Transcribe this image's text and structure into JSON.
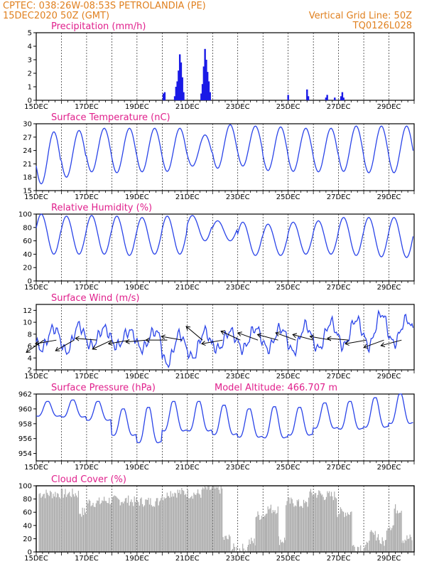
{
  "header": {
    "line1_left": "CPTEC:   038:26W-08:53S   PETROLANDIA (PE)",
    "line2_left": "15DEC2020 50Z (GMT)",
    "line1_right": "Vertical Grid Line: 50Z",
    "line2_right": "TQ0126L028"
  },
  "colors": {
    "header": "#e0801f",
    "panel_title": "#e0208c",
    "series_line": "#2a44e8",
    "precip_bar": "#1a1ae6",
    "cloud_fill": "#a9a9a9",
    "wind_arrow": "#000000"
  },
  "chart_data": [
    {
      "type": "bar",
      "title": "Precipitation (mm/h)",
      "x_labels": [
        "15DEC",
        "17DEC",
        "19DEC",
        "21DEC",
        "23DEC",
        "25DEC",
        "27DEC",
        "29DEC"
      ],
      "x_label_day": [
        0,
        2,
        4,
        6,
        8,
        10,
        12,
        14
      ],
      "ylim": [
        0,
        5
      ],
      "yticks": [
        0,
        1,
        2,
        3,
        4,
        5
      ],
      "day_range": [
        0,
        15
      ],
      "bars": [
        {
          "day": 5.05,
          "value": 0.5
        },
        {
          "day": 5.1,
          "value": 0.6
        },
        {
          "day": 5.5,
          "value": 0.3
        },
        {
          "day": 5.55,
          "value": 1.0
        },
        {
          "day": 5.6,
          "value": 1.4
        },
        {
          "day": 5.65,
          "value": 2.2
        },
        {
          "day": 5.7,
          "value": 3.4
        },
        {
          "day": 5.75,
          "value": 2.8
        },
        {
          "day": 5.8,
          "value": 1.7
        },
        {
          "day": 5.85,
          "value": 0.6
        },
        {
          "day": 6.55,
          "value": 0.5
        },
        {
          "day": 6.6,
          "value": 1.2
        },
        {
          "day": 6.65,
          "value": 2.5
        },
        {
          "day": 6.7,
          "value": 3.8
        },
        {
          "day": 6.75,
          "value": 3.0
        },
        {
          "day": 6.8,
          "value": 2.1
        },
        {
          "day": 6.85,
          "value": 1.4
        },
        {
          "day": 6.9,
          "value": 0.6
        },
        {
          "day": 10.0,
          "value": 0.4
        },
        {
          "day": 10.75,
          "value": 0.8
        },
        {
          "day": 10.8,
          "value": 0.3
        },
        {
          "day": 11.5,
          "value": 0.2
        },
        {
          "day": 11.55,
          "value": 0.4
        },
        {
          "day": 11.85,
          "value": 0.2
        },
        {
          "day": 12.1,
          "value": 0.3
        },
        {
          "day": 12.15,
          "value": 0.6
        },
        {
          "day": 12.2,
          "value": 0.2
        }
      ]
    },
    {
      "type": "line",
      "title": "Surface Temperature (nC)",
      "x_labels": [
        "15DEC",
        "17DEC",
        "19DEC",
        "21DEC",
        "23DEC",
        "25DEC",
        "27DEC",
        "29DEC"
      ],
      "x_label_day": [
        0,
        2,
        4,
        6,
        8,
        10,
        12,
        14
      ],
      "ylim": [
        15,
        30
      ],
      "yticks": [
        15,
        18,
        21,
        24,
        27,
        30
      ],
      "day_range": [
        0,
        15
      ],
      "daily": [
        {
          "min": 16.5,
          "max": 28.2
        },
        {
          "min": 18.0,
          "max": 28.5
        },
        {
          "min": 19.2,
          "max": 29.0
        },
        {
          "min": 19.0,
          "max": 29.0
        },
        {
          "min": 19.2,
          "max": 29.0
        },
        {
          "min": 19.3,
          "max": 29.0
        },
        {
          "min": 20.5,
          "max": 27.5
        },
        {
          "min": 20.0,
          "max": 29.8
        },
        {
          "min": 20.5,
          "max": 29.5
        },
        {
          "min": 19.5,
          "max": 29.3
        },
        {
          "min": 19.3,
          "max": 29.0
        },
        {
          "min": 19.2,
          "max": 29.0
        },
        {
          "min": 19.3,
          "max": 29.5
        },
        {
          "min": 19.0,
          "max": 29.5
        },
        {
          "min": 19.0,
          "max": 29.5
        }
      ]
    },
    {
      "type": "line",
      "title": "Relative Humidity (%)",
      "x_labels": [
        "15DEC",
        "17DEC",
        "19DEC",
        "21DEC",
        "23DEC",
        "25DEC",
        "27DEC",
        "29DEC"
      ],
      "x_label_day": [
        0,
        2,
        4,
        6,
        8,
        10,
        12,
        14
      ],
      "ylim": [
        0,
        100
      ],
      "yticks": [
        0,
        20,
        40,
        60,
        80,
        100
      ],
      "day_range": [
        0,
        15
      ],
      "daily": [
        {
          "min": 40,
          "max": 100
        },
        {
          "min": 40,
          "max": 97
        },
        {
          "min": 40,
          "max": 98
        },
        {
          "min": 38,
          "max": 97
        },
        {
          "min": 40,
          "max": 95
        },
        {
          "min": 40,
          "max": 97
        },
        {
          "min": 60,
          "max": 98
        },
        {
          "min": 60,
          "max": 90
        },
        {
          "min": 38,
          "max": 88
        },
        {
          "min": 38,
          "max": 85
        },
        {
          "min": 40,
          "max": 88
        },
        {
          "min": 40,
          "max": 90
        },
        {
          "min": 38,
          "max": 95
        },
        {
          "min": 36,
          "max": 95
        },
        {
          "min": 35,
          "max": 95
        }
      ]
    },
    {
      "type": "line",
      "title": "Surface Wind (m/s)",
      "x_labels": [
        "15DEC",
        "17DEC",
        "19DEC",
        "21DEC",
        "23DEC",
        "25DEC",
        "27DEC",
        "29DEC"
      ],
      "x_label_day": [
        0,
        2,
        4,
        6,
        8,
        10,
        12,
        14
      ],
      "ylim": [
        2,
        13
      ],
      "yticks": [
        2,
        4,
        6,
        8,
        10,
        12
      ],
      "day_range": [
        0,
        15
      ],
      "daily": [
        {
          "min": 5.5,
          "max": 9.0
        },
        {
          "min": 5.0,
          "max": 9.5
        },
        {
          "min": 6.0,
          "max": 9.0
        },
        {
          "min": 6.0,
          "max": 8.5
        },
        {
          "min": 5.5,
          "max": 8.5
        },
        {
          "min": 3.0,
          "max": 8.0
        },
        {
          "min": 4.0,
          "max": 8.5
        },
        {
          "min": 5.5,
          "max": 8.5
        },
        {
          "min": 5.5,
          "max": 9.0
        },
        {
          "min": 5.5,
          "max": 9.0
        },
        {
          "min": 5.0,
          "max": 9.5
        },
        {
          "min": 5.5,
          "max": 10.0
        },
        {
          "min": 6.0,
          "max": 10.5
        },
        {
          "min": 6.0,
          "max": 11.5
        },
        {
          "min": 6.5,
          "max": 10.5
        }
      ],
      "arrows": [
        {
          "day": 0.3,
          "dir": -35
        },
        {
          "day": 0.8,
          "dir": -10
        },
        {
          "day": 1.5,
          "dir": -30
        },
        {
          "day": 2.4,
          "dir": 5
        },
        {
          "day": 3.0,
          "dir": -25
        },
        {
          "day": 3.7,
          "dir": -10
        },
        {
          "day": 4.4,
          "dir": -5
        },
        {
          "day": 5.2,
          "dir": 0
        },
        {
          "day": 5.8,
          "dir": 10
        },
        {
          "day": 6.6,
          "dir": 40
        },
        {
          "day": 7.4,
          "dir": -10
        },
        {
          "day": 8.1,
          "dir": 25
        },
        {
          "day": 8.8,
          "dir": 20
        },
        {
          "day": 9.6,
          "dir": 15
        },
        {
          "day": 10.3,
          "dir": 20
        },
        {
          "day": 11.0,
          "dir": 15
        },
        {
          "day": 11.7,
          "dir": 10
        },
        {
          "day": 12.4,
          "dir": 5
        },
        {
          "day": 13.1,
          "dir": -10
        },
        {
          "day": 13.8,
          "dir": -20
        },
        {
          "day": 14.5,
          "dir": -15
        }
      ]
    },
    {
      "type": "line",
      "title": "Surface Pressure (hPa)",
      "subtitle": "Model Altitude: 466.707 m",
      "x_labels": [
        "15DEC",
        "17DEC",
        "19DEC",
        "21DEC",
        "23DEC",
        "25DEC",
        "27DEC",
        "29DEC"
      ],
      "x_label_day": [
        0,
        2,
        4,
        6,
        8,
        10,
        12,
        14
      ],
      "ylim": [
        953,
        962
      ],
      "yticks": [
        954,
        956,
        958,
        960,
        962
      ],
      "day_range": [
        0,
        15
      ],
      "daily": [
        {
          "min": 958.5,
          "max": 961.0
        },
        {
          "min": 958.3,
          "max": 961.2
        },
        {
          "min": 957.8,
          "max": 961.0
        },
        {
          "min": 955.5,
          "max": 960.0
        },
        {
          "min": 954.2,
          "max": 960.2
        },
        {
          "min": 956.0,
          "max": 961.0
        },
        {
          "min": 956.0,
          "max": 961.0
        },
        {
          "min": 955.5,
          "max": 960.5
        },
        {
          "min": 955.2,
          "max": 960.0
        },
        {
          "min": 955.0,
          "max": 960.3
        },
        {
          "min": 955.5,
          "max": 960.2
        },
        {
          "min": 956.5,
          "max": 960.8
        },
        {
          "min": 956.3,
          "max": 961.0
        },
        {
          "min": 956.5,
          "max": 961.5
        },
        {
          "min": 957.0,
          "max": 962.0
        }
      ]
    },
    {
      "type": "area",
      "title": "Cloud Cover (%)",
      "x_labels": [
        "15DEC",
        "17DEC",
        "19DEC",
        "21DEC",
        "23DEC",
        "25DEC",
        "27DEC",
        "29DEC"
      ],
      "x_label_day": [
        0,
        2,
        4,
        6,
        8,
        10,
        12,
        14
      ],
      "ylim": [
        0,
        100
      ],
      "yticks": [
        0,
        20,
        40,
        60,
        80,
        100
      ],
      "day_range": [
        0,
        15
      ],
      "segments": [
        {
          "start": 0.1,
          "end": 1.7,
          "level": 88
        },
        {
          "start": 1.7,
          "end": 2.0,
          "level": 60
        },
        {
          "start": 2.0,
          "end": 2.6,
          "level": 75
        },
        {
          "start": 2.6,
          "end": 3.8,
          "level": 78
        },
        {
          "start": 3.8,
          "end": 4.9,
          "level": 76
        },
        {
          "start": 4.9,
          "end": 5.2,
          "level": 85
        },
        {
          "start": 5.2,
          "end": 6.0,
          "level": 90
        },
        {
          "start": 6.0,
          "end": 6.6,
          "level": 88
        },
        {
          "start": 6.6,
          "end": 7.4,
          "level": 95
        },
        {
          "start": 7.4,
          "end": 7.7,
          "level": 20
        },
        {
          "start": 7.7,
          "end": 8.4,
          "level": 5
        },
        {
          "start": 8.4,
          "end": 8.7,
          "level": 15
        },
        {
          "start": 8.7,
          "end": 9.1,
          "level": 55
        },
        {
          "start": 9.1,
          "end": 9.6,
          "level": 65
        },
        {
          "start": 9.6,
          "end": 9.9,
          "level": 18
        },
        {
          "start": 9.9,
          "end": 10.4,
          "level": 75
        },
        {
          "start": 10.4,
          "end": 10.8,
          "level": 72
        },
        {
          "start": 10.8,
          "end": 11.3,
          "level": 88
        },
        {
          "start": 11.3,
          "end": 11.9,
          "level": 85
        },
        {
          "start": 11.9,
          "end": 12.5,
          "level": 60
        },
        {
          "start": 12.5,
          "end": 13.2,
          "level": 8
        },
        {
          "start": 13.2,
          "end": 13.6,
          "level": 25
        },
        {
          "start": 13.6,
          "end": 13.9,
          "level": 15
        },
        {
          "start": 13.9,
          "end": 14.2,
          "level": 40
        },
        {
          "start": 14.2,
          "end": 14.5,
          "level": 65
        },
        {
          "start": 14.5,
          "end": 14.9,
          "level": 20
        }
      ]
    }
  ]
}
